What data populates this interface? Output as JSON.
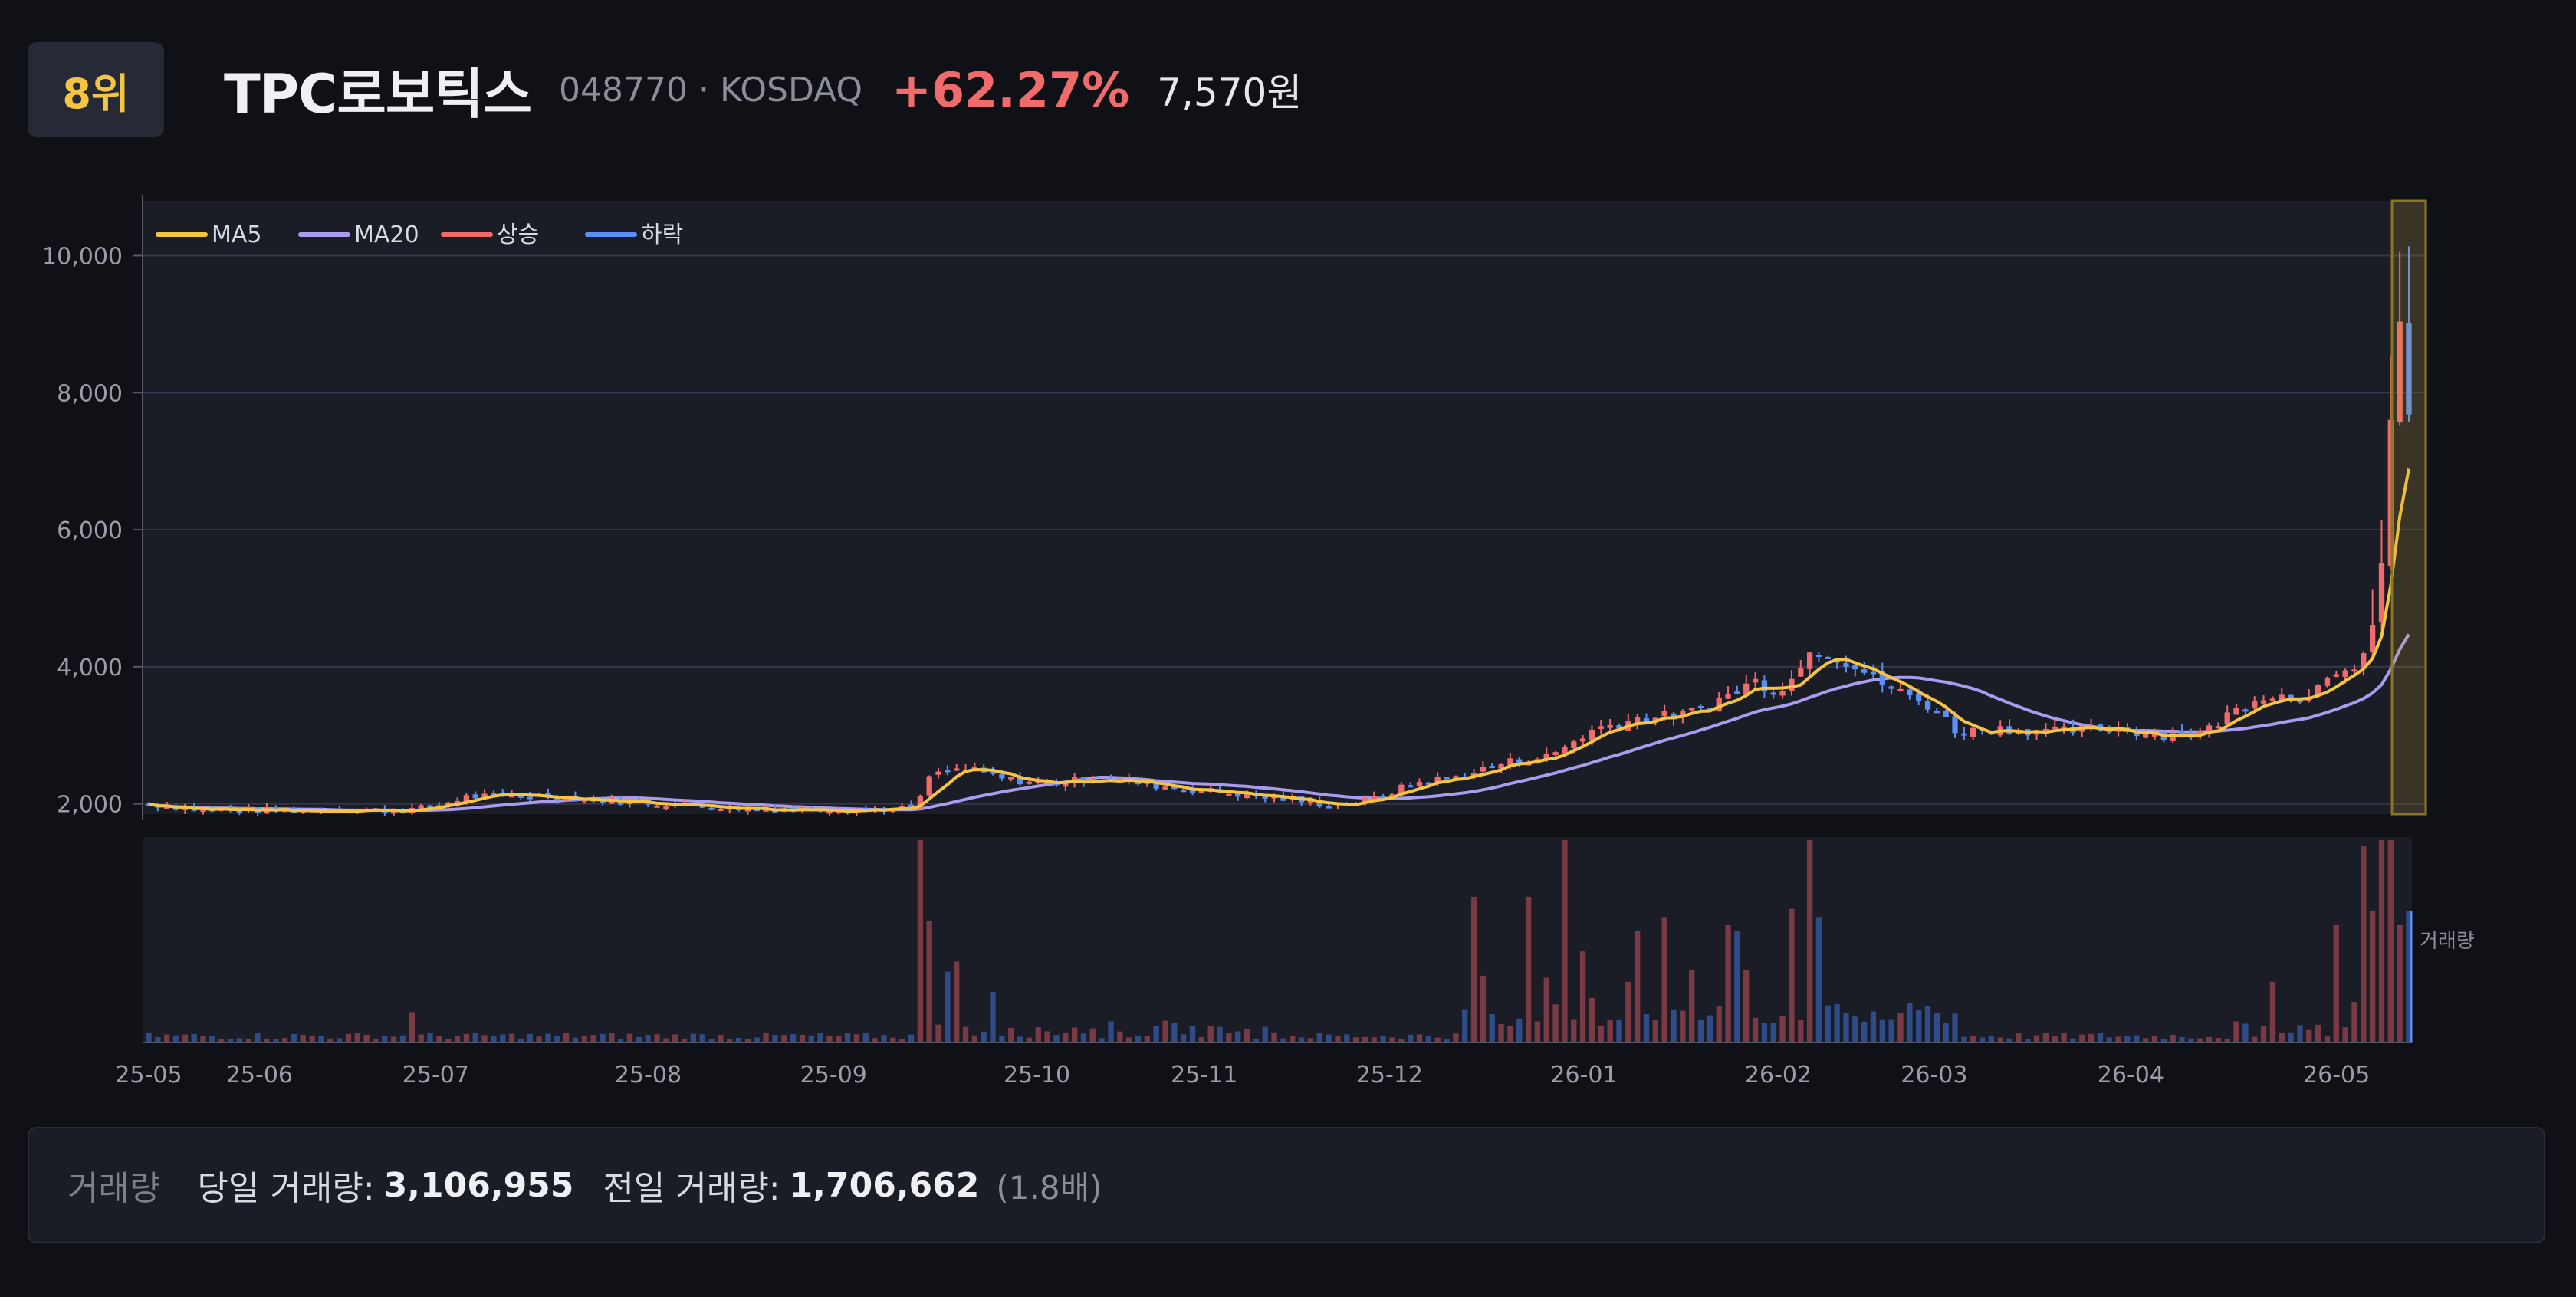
{
  "header": {
    "rank": "8위",
    "name": "TPC로보틱스",
    "code_market": "048770 · KOSDAQ",
    "change": "+62.27%",
    "price": "7,570원"
  },
  "colors": {
    "background": "#101116",
    "panel": "#1b1d26",
    "rank_text": "#f5c542",
    "up": "#f06b6b",
    "down": "#5b8ff5",
    "ma5": "#f5c542",
    "ma20": "#a99cf0",
    "highlight": "#c9a227"
  },
  "chart_data": {
    "type": "candlestick",
    "legend": [
      {
        "label": "MA5",
        "color": "#f5c542"
      },
      {
        "label": "MA20",
        "color": "#a99cf0"
      },
      {
        "label": "상승",
        "color": "#f06b6b"
      },
      {
        "label": "하락",
        "color": "#5b8ff5"
      }
    ],
    "legend_position": "top-left",
    "y_ticks": [
      "10,000",
      "8,000",
      "6,000",
      "4,000",
      "2,000"
    ],
    "y_tick_values": [
      10000,
      8000,
      6000,
      4000,
      2000
    ],
    "ylim": [
      1850,
      10800
    ],
    "x_ticks": [
      {
        "label": "25-05",
        "t": 0.0
      },
      {
        "label": "25-06",
        "t": 0.049
      },
      {
        "label": "25-07",
        "t": 0.127
      },
      {
        "label": "25-08",
        "t": 0.221
      },
      {
        "label": "25-09",
        "t": 0.303
      },
      {
        "label": "25-10",
        "t": 0.393
      },
      {
        "label": "25-11",
        "t": 0.467
      },
      {
        "label": "25-12",
        "t": 0.549
      },
      {
        "label": "26-01",
        "t": 0.635
      },
      {
        "label": "26-02",
        "t": 0.721
      },
      {
        "label": "26-03",
        "t": 0.79
      },
      {
        "label": "26-04",
        "t": 0.877
      },
      {
        "label": "26-05",
        "t": 0.968
      }
    ],
    "volume_label": "거래량",
    "price_anchors": [
      [
        0.0,
        2000
      ],
      [
        0.02,
        1920
      ],
      [
        0.06,
        1900
      ],
      [
        0.09,
        1920
      ],
      [
        0.11,
        1900
      ],
      [
        0.125,
        1950
      ],
      [
        0.14,
        2100
      ],
      [
        0.17,
        2130
      ],
      [
        0.2,
        2050
      ],
      [
        0.23,
        2000
      ],
      [
        0.27,
        1920
      ],
      [
        0.3,
        1930
      ],
      [
        0.33,
        1920
      ],
      [
        0.34,
        1950
      ],
      [
        0.345,
        2400
      ],
      [
        0.36,
        2520
      ],
      [
        0.38,
        2350
      ],
      [
        0.4,
        2300
      ],
      [
        0.42,
        2380
      ],
      [
        0.45,
        2250
      ],
      [
        0.48,
        2150
      ],
      [
        0.5,
        2080
      ],
      [
        0.52,
        1990
      ],
      [
        0.54,
        2050
      ],
      [
        0.56,
        2300
      ],
      [
        0.58,
        2400
      ],
      [
        0.6,
        2600
      ],
      [
        0.62,
        2700
      ],
      [
        0.64,
        3100
      ],
      [
        0.66,
        3250
      ],
      [
        0.68,
        3300
      ],
      [
        0.7,
        3600
      ],
      [
        0.71,
        3800
      ],
      [
        0.72,
        3650
      ],
      [
        0.73,
        3900
      ],
      [
        0.735,
        4300
      ],
      [
        0.75,
        4100
      ],
      [
        0.77,
        3700
      ],
      [
        0.79,
        3400
      ],
      [
        0.8,
        3050
      ],
      [
        0.82,
        3100
      ],
      [
        0.84,
        3050
      ],
      [
        0.87,
        3100
      ],
      [
        0.89,
        3000
      ],
      [
        0.91,
        3050
      ],
      [
        0.92,
        3300
      ],
      [
        0.935,
        3600
      ],
      [
        0.95,
        3550
      ],
      [
        0.96,
        3700
      ],
      [
        0.97,
        3850
      ],
      [
        0.975,
        4000
      ],
      [
        0.98,
        4200
      ],
      [
        0.985,
        4700
      ],
      [
        0.988,
        5400
      ],
      [
        0.991,
        7200
      ],
      [
        0.995,
        9300
      ],
      [
        1.0,
        7570
      ]
    ],
    "volume_spikes": [
      [
        0.117,
        0.15
      ],
      [
        0.341,
        1.0
      ],
      [
        0.345,
        0.6
      ],
      [
        0.352,
        0.35
      ],
      [
        0.356,
        0.4
      ],
      [
        0.375,
        0.25
      ],
      [
        0.585,
        0.72
      ],
      [
        0.59,
        0.33
      ],
      [
        0.612,
        0.72
      ],
      [
        0.618,
        0.32
      ],
      [
        0.625,
        1.0
      ],
      [
        0.634,
        0.45
      ],
      [
        0.639,
        0.22
      ],
      [
        0.654,
        0.3
      ],
      [
        0.659,
        0.55
      ],
      [
        0.672,
        0.62
      ],
      [
        0.683,
        0.36
      ],
      [
        0.697,
        0.58
      ],
      [
        0.703,
        0.55
      ],
      [
        0.708,
        0.36
      ],
      [
        0.725,
        0.66
      ],
      [
        0.734,
        1.0
      ],
      [
        0.737,
        0.62
      ],
      [
        0.939,
        0.3
      ],
      [
        0.966,
        0.58
      ],
      [
        0.974,
        0.2
      ],
      [
        0.98,
        0.97
      ],
      [
        0.983,
        0.65
      ],
      [
        0.989,
        1.0
      ],
      [
        0.993,
        1.0
      ],
      [
        0.997,
        0.58
      ],
      [
        1.0,
        0.65
      ]
    ],
    "highlight_last": true
  },
  "volume_info": {
    "label": "거래량",
    "today_label": "당일 거래량:",
    "today_value": "3,106,955",
    "prev_label": "전일 거래량:",
    "prev_value": "1,706,662",
    "ratio": "(1.8배)"
  }
}
